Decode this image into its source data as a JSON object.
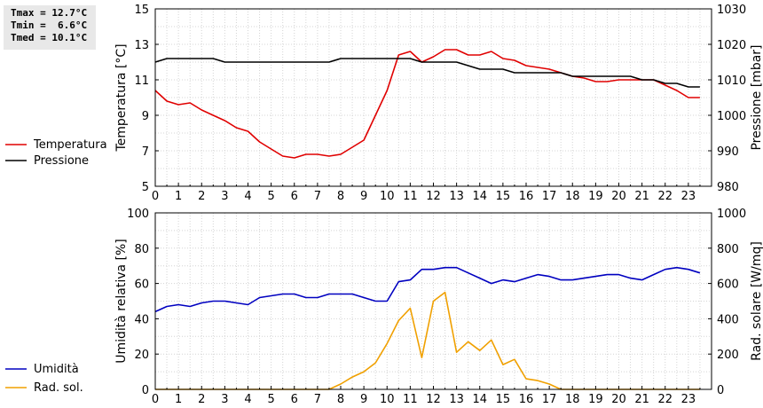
{
  "stats": {
    "tmax": "Tmax = 12.7°C",
    "tmin": "Tmin =  6.6°C",
    "tmed": "Tmed = 10.1°C"
  },
  "chart_data": [
    {
      "type": "line",
      "x_ticks": [
        "0",
        "1",
        "2",
        "3",
        "4",
        "5",
        "6",
        "7",
        "8",
        "9",
        "10",
        "11",
        "12",
        "13",
        "14",
        "15",
        "16",
        "17",
        "18",
        "19",
        "20",
        "21",
        "22",
        "23"
      ],
      "xlim": [
        0,
        24
      ],
      "ylabel_left": "Temperatura [°C]",
      "ylabel_right": "Pressione [mbar]",
      "ylim_left": [
        5,
        15
      ],
      "yticks_left": [
        "5",
        "7",
        "9",
        "11",
        "13",
        "15"
      ],
      "ylim_right": [
        980,
        1030
      ],
      "yticks_right": [
        "980",
        "990",
        "1000",
        "1010",
        "1020",
        "1030"
      ],
      "grid": true,
      "legend_placement": "left",
      "series": [
        {
          "name": "Temperatura",
          "axis": "left",
          "color": "#e00000",
          "x": [
            0,
            0.5,
            1,
            1.5,
            2,
            2.5,
            3,
            3.5,
            4,
            4.5,
            5,
            5.5,
            6,
            6.5,
            7,
            7.5,
            8,
            8.5,
            9,
            9.5,
            10,
            10.5,
            11,
            11.5,
            12,
            12.5,
            13,
            13.5,
            14,
            14.5,
            15,
            15.5,
            16,
            16.5,
            17,
            17.5,
            18,
            18.5,
            19,
            19.5,
            20,
            20.5,
            21,
            21.5,
            22,
            22.5,
            23,
            23.5
          ],
          "values": [
            10.4,
            9.8,
            9.6,
            9.7,
            9.3,
            9.0,
            8.7,
            8.3,
            8.1,
            7.5,
            7.1,
            6.7,
            6.6,
            6.8,
            6.8,
            6.7,
            6.8,
            7.2,
            7.6,
            9.0,
            10.4,
            12.4,
            12.6,
            12.0,
            12.3,
            12.7,
            12.7,
            12.4,
            12.4,
            12.6,
            12.2,
            12.1,
            11.8,
            11.7,
            11.6,
            11.4,
            11.2,
            11.1,
            10.9,
            10.9,
            11.0,
            11.0,
            11.0,
            11.0,
            10.7,
            10.4,
            10.0,
            10.0
          ]
        },
        {
          "name": "Pressione",
          "axis": "right",
          "color": "#000000",
          "x": [
            0,
            0.5,
            1,
            1.5,
            2,
            2.5,
            3,
            3.5,
            4,
            4.5,
            5,
            5.5,
            6,
            6.5,
            7,
            7.5,
            8,
            8.5,
            9,
            9.5,
            10,
            10.5,
            11,
            11.5,
            12,
            12.5,
            13,
            13.5,
            14,
            14.5,
            15,
            15.5,
            16,
            16.5,
            17,
            17.5,
            18,
            18.5,
            19,
            19.5,
            20,
            20.5,
            21,
            21.5,
            22,
            22.5,
            23,
            23.5
          ],
          "values": [
            1015,
            1016,
            1016,
            1016,
            1016,
            1016,
            1015,
            1015,
            1015,
            1015,
            1015,
            1015,
            1015,
            1015,
            1015,
            1015,
            1016,
            1016,
            1016,
            1016,
            1016,
            1016,
            1016,
            1015,
            1015,
            1015,
            1015,
            1014,
            1013,
            1013,
            1013,
            1012,
            1012,
            1012,
            1012,
            1012,
            1011,
            1011,
            1011,
            1011,
            1011,
            1011,
            1010,
            1010,
            1009,
            1009,
            1008,
            1008
          ]
        }
      ]
    },
    {
      "type": "line",
      "x_ticks": [
        "0",
        "1",
        "2",
        "3",
        "4",
        "5",
        "6",
        "7",
        "8",
        "9",
        "10",
        "11",
        "12",
        "13",
        "14",
        "15",
        "16",
        "17",
        "18",
        "19",
        "20",
        "21",
        "22",
        "23"
      ],
      "xlim": [
        0,
        24
      ],
      "ylabel_left": "Umidità relativa [%]",
      "ylabel_right": "Rad. solare [W/mq]",
      "ylim_left": [
        0,
        100
      ],
      "yticks_left": [
        "0",
        "20",
        "40",
        "60",
        "80",
        "100"
      ],
      "ylim_right": [
        0,
        1000
      ],
      "yticks_right": [
        "0",
        "200",
        "400",
        "600",
        "800",
        "1000"
      ],
      "grid": true,
      "legend_placement": "left",
      "series": [
        {
          "name": "Umidità",
          "axis": "left",
          "color": "#0000c0",
          "x": [
            0,
            0.5,
            1,
            1.5,
            2,
            2.5,
            3,
            3.5,
            4,
            4.5,
            5,
            5.5,
            6,
            6.5,
            7,
            7.5,
            8,
            8.5,
            9,
            9.5,
            10,
            10.5,
            11,
            11.5,
            12,
            12.5,
            13,
            13.5,
            14,
            14.5,
            15,
            15.5,
            16,
            16.5,
            17,
            17.5,
            18,
            18.5,
            19,
            19.5,
            20,
            20.5,
            21,
            21.5,
            22,
            22.5,
            23,
            23.5
          ],
          "values": [
            44,
            47,
            48,
            47,
            49,
            50,
            50,
            49,
            48,
            52,
            53,
            54,
            54,
            52,
            52,
            54,
            54,
            54,
            52,
            50,
            50,
            61,
            62,
            68,
            68,
            69,
            69,
            66,
            63,
            60,
            62,
            61,
            63,
            65,
            64,
            62,
            62,
            63,
            64,
            65,
            65,
            63,
            62,
            65,
            68,
            69,
            68,
            66
          ]
        },
        {
          "name": "Rad. sol.",
          "axis": "right",
          "color": "#f0a000",
          "x": [
            0,
            0.5,
            1,
            1.5,
            2,
            2.5,
            3,
            3.5,
            4,
            4.5,
            5,
            5.5,
            6,
            6.5,
            7,
            7.5,
            8,
            8.5,
            9,
            9.5,
            10,
            10.5,
            11,
            11.5,
            12,
            12.5,
            13,
            13.5,
            14,
            14.5,
            15,
            15.5,
            16,
            16.5,
            17,
            17.5,
            18,
            18.5,
            19,
            19.5,
            20,
            20.5,
            21,
            21.5,
            22,
            22.5,
            23,
            23.5
          ],
          "values": [
            0,
            0,
            0,
            0,
            0,
            0,
            0,
            0,
            0,
            0,
            0,
            0,
            0,
            0,
            0,
            0,
            30,
            70,
            100,
            150,
            260,
            390,
            460,
            180,
            500,
            550,
            210,
            270,
            220,
            280,
            140,
            170,
            60,
            50,
            30,
            0,
            0,
            0,
            0,
            0,
            0,
            0,
            0,
            0,
            0,
            0,
            0,
            0
          ]
        }
      ]
    }
  ]
}
